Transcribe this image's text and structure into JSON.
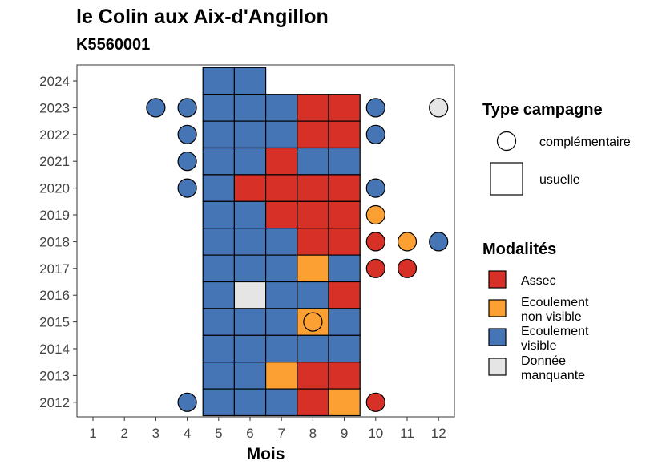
{
  "chart_data": {
    "type": "heatmap",
    "title": "le Colin aux Aix-d'Angillon",
    "subtitle": "K5560001",
    "xlabel": "Mois",
    "ylabel": "",
    "x_ticks": [
      1,
      2,
      3,
      4,
      5,
      6,
      7,
      8,
      9,
      10,
      11,
      12
    ],
    "y_ticks": [
      2012,
      2013,
      2014,
      2015,
      2016,
      2017,
      2018,
      2019,
      2020,
      2021,
      2022,
      2023,
      2024
    ],
    "colors": {
      "Assec": "#D73027",
      "Ecoulement non visible": "#FDA033",
      "Ecoulement visible": "#4575B4",
      "Donnée manquante": "#E5E5E5"
    },
    "legend_type": {
      "title": "Type campagne",
      "items": [
        {
          "label": "complémentaire",
          "shape": "circle"
        },
        {
          "label": "usuelle",
          "shape": "square"
        }
      ]
    },
    "legend_modalites": {
      "title": "Modalités",
      "items": [
        {
          "lines": [
            "Assec"
          ],
          "key": "Assec"
        },
        {
          "lines": [
            "Ecoulement",
            "non visible"
          ],
          "key": "Ecoulement non visible"
        },
        {
          "lines": [
            "Ecoulement",
            "visible"
          ],
          "key": "Ecoulement visible"
        },
        {
          "lines": [
            "Donnée",
            "manquante"
          ],
          "key": "Donnée manquante"
        }
      ]
    },
    "usuelle": [
      {
        "year": 2024,
        "months": {
          "5": "Ecoulement visible",
          "6": "Ecoulement visible"
        }
      },
      {
        "year": 2023,
        "months": {
          "5": "Ecoulement visible",
          "6": "Ecoulement visible",
          "7": "Ecoulement visible",
          "8": "Assec",
          "9": "Assec"
        }
      },
      {
        "year": 2022,
        "months": {
          "5": "Ecoulement visible",
          "6": "Ecoulement visible",
          "7": "Ecoulement visible",
          "8": "Assec",
          "9": "Assec"
        }
      },
      {
        "year": 2021,
        "months": {
          "5": "Ecoulement visible",
          "6": "Ecoulement visible",
          "7": "Assec",
          "8": "Ecoulement visible",
          "9": "Ecoulement visible"
        }
      },
      {
        "year": 2020,
        "months": {
          "5": "Ecoulement visible",
          "6": "Assec",
          "7": "Assec",
          "8": "Assec",
          "9": "Assec"
        }
      },
      {
        "year": 2019,
        "months": {
          "5": "Ecoulement visible",
          "6": "Ecoulement visible",
          "7": "Assec",
          "8": "Assec",
          "9": "Assec"
        }
      },
      {
        "year": 2018,
        "months": {
          "5": "Ecoulement visible",
          "6": "Ecoulement visible",
          "7": "Ecoulement visible",
          "8": "Assec",
          "9": "Assec"
        }
      },
      {
        "year": 2017,
        "months": {
          "5": "Ecoulement visible",
          "6": "Ecoulement visible",
          "7": "Ecoulement visible",
          "8": "Ecoulement non visible",
          "9": "Ecoulement visible"
        }
      },
      {
        "year": 2016,
        "months": {
          "5": "Ecoulement visible",
          "6": "Donnée manquante",
          "7": "Ecoulement visible",
          "8": "Ecoulement visible",
          "9": "Assec"
        }
      },
      {
        "year": 2015,
        "months": {
          "5": "Ecoulement visible",
          "6": "Ecoulement visible",
          "7": "Ecoulement visible",
          "8": "Ecoulement non visible",
          "9": "Ecoulement visible"
        }
      },
      {
        "year": 2014,
        "months": {
          "5": "Ecoulement visible",
          "6": "Ecoulement visible",
          "7": "Ecoulement visible",
          "8": "Ecoulement visible",
          "9": "Ecoulement visible"
        }
      },
      {
        "year": 2013,
        "months": {
          "5": "Ecoulement visible",
          "6": "Ecoulement visible",
          "7": "Ecoulement non visible",
          "8": "Assec",
          "9": "Assec"
        }
      },
      {
        "year": 2012,
        "months": {
          "5": "Ecoulement visible",
          "6": "Ecoulement visible",
          "7": "Ecoulement visible",
          "8": "Assec",
          "9": "Ecoulement non visible"
        }
      }
    ],
    "complementaire": [
      {
        "year": 2023,
        "month": 3,
        "value": "Ecoulement visible"
      },
      {
        "year": 2023,
        "month": 4,
        "value": "Ecoulement visible"
      },
      {
        "year": 2023,
        "month": 10,
        "value": "Ecoulement visible"
      },
      {
        "year": 2023,
        "month": 12,
        "value": "Donnée manquante"
      },
      {
        "year": 2022,
        "month": 4,
        "value": "Ecoulement visible"
      },
      {
        "year": 2022,
        "month": 10,
        "value": "Ecoulement visible"
      },
      {
        "year": 2021,
        "month": 4,
        "value": "Ecoulement visible"
      },
      {
        "year": 2020,
        "month": 4,
        "value": "Ecoulement visible"
      },
      {
        "year": 2020,
        "month": 10,
        "value": "Ecoulement visible"
      },
      {
        "year": 2019,
        "month": 10,
        "value": "Ecoulement non visible"
      },
      {
        "year": 2018,
        "month": 10,
        "value": "Assec"
      },
      {
        "year": 2018,
        "month": 11,
        "value": "Ecoulement non visible"
      },
      {
        "year": 2018,
        "month": 12,
        "value": "Ecoulement visible"
      },
      {
        "year": 2017,
        "month": 10,
        "value": "Assec"
      },
      {
        "year": 2017,
        "month": 11,
        "value": "Assec"
      },
      {
        "year": 2015,
        "month": 8,
        "value": "Ecoulement non visible"
      },
      {
        "year": 2012,
        "month": 4,
        "value": "Ecoulement visible"
      },
      {
        "year": 2012,
        "month": 10,
        "value": "Assec"
      }
    ]
  }
}
